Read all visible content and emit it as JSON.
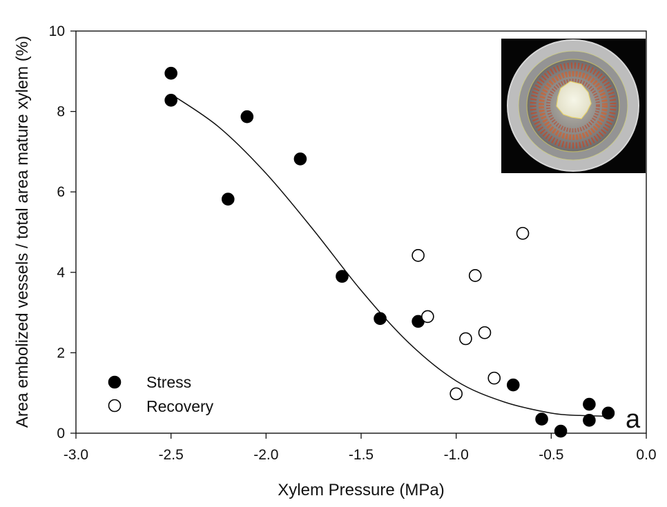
{
  "chart_data": {
    "type": "scatter",
    "xlabel": "Xylem Pressure (MPa)",
    "ylabel": "Area embolized vessels / total area mature xylem (%)",
    "xlim": [
      -3.0,
      0.0
    ],
    "ylim": [
      0,
      10
    ],
    "xticks": [
      "-3.0",
      "-2.5",
      "-2.0",
      "-1.5",
      "-1.0",
      "-0.5",
      "0.0"
    ],
    "yticks": [
      "0",
      "2",
      "4",
      "6",
      "8",
      "10"
    ],
    "grid": false,
    "legend_position": "bottom-left",
    "panel_label": "a",
    "series": [
      {
        "name": "Stress",
        "marker": "filled-circle",
        "color": "#000000",
        "points": [
          {
            "x": -2.5,
            "y": 8.95
          },
          {
            "x": -2.5,
            "y": 8.28
          },
          {
            "x": -2.2,
            "y": 5.82
          },
          {
            "x": -2.1,
            "y": 7.87
          },
          {
            "x": -1.82,
            "y": 6.82
          },
          {
            "x": -1.6,
            "y": 3.9
          },
          {
            "x": -1.4,
            "y": 2.85
          },
          {
            "x": -1.2,
            "y": 2.78
          },
          {
            "x": -0.7,
            "y": 1.2
          },
          {
            "x": -0.55,
            "y": 0.35
          },
          {
            "x": -0.45,
            "y": 0.05
          },
          {
            "x": -0.3,
            "y": 0.72
          },
          {
            "x": -0.3,
            "y": 0.32
          },
          {
            "x": -0.2,
            "y": 0.5
          }
        ]
      },
      {
        "name": "Recovery",
        "marker": "open-circle",
        "color": "#000000",
        "points": [
          {
            "x": -1.2,
            "y": 4.42
          },
          {
            "x": -1.15,
            "y": 2.9
          },
          {
            "x": -1.0,
            "y": 0.98
          },
          {
            "x": -0.95,
            "y": 2.35
          },
          {
            "x": -0.9,
            "y": 3.92
          },
          {
            "x": -0.85,
            "y": 2.5
          },
          {
            "x": -0.8,
            "y": 1.37
          },
          {
            "x": -0.65,
            "y": 4.97
          }
        ]
      }
    ],
    "fit_curve": {
      "type": "sigmoidal",
      "color": "#000000",
      "points": [
        {
          "x": -2.5,
          "y": 8.43
        },
        {
          "x": -2.25,
          "y": 7.62
        },
        {
          "x": -2.0,
          "y": 6.46
        },
        {
          "x": -1.75,
          "y": 5.05
        },
        {
          "x": -1.5,
          "y": 3.55
        },
        {
          "x": -1.25,
          "y": 2.25
        },
        {
          "x": -1.0,
          "y": 1.3
        },
        {
          "x": -0.75,
          "y": 0.78
        },
        {
          "x": -0.5,
          "y": 0.5
        },
        {
          "x": -0.35,
          "y": 0.44
        },
        {
          "x": -0.2,
          "y": 0.42
        }
      ]
    },
    "inset": {
      "description_name": "xylem-cross-section-image"
    }
  }
}
